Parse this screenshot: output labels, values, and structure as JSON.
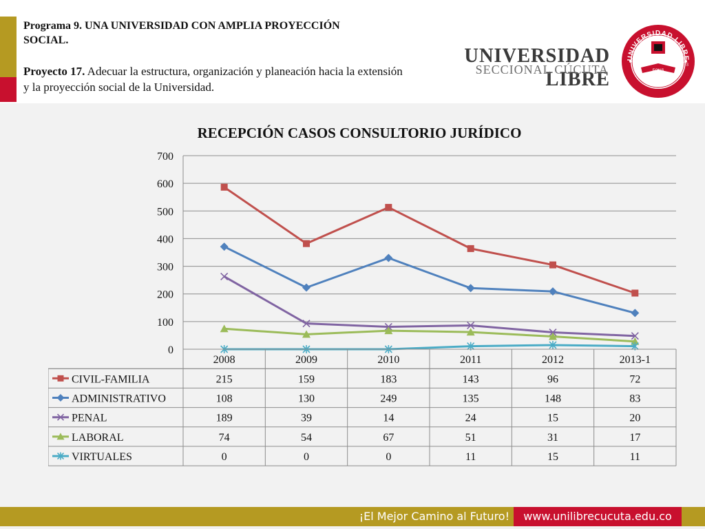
{
  "header": {
    "program_title": "Programa 9. UNA UNIVERSIDAD CON AMPLIA PROYECCIÓN SOCIAL.",
    "project_label": "Proyecto 17.",
    "project_text": " Adecuar la estructura, organización y planeación hacia la extensión y la proyección social de la Universidad.",
    "brand_name": "UNIVERSIDAD LIBRE",
    "brand_sub": "SECCIONAL CÚCUTA",
    "seal_top": "UNIVERSIDAD LIBRE",
    "seal_bottom": "COLOMBIA",
    "seal_left": "SCIENTIA",
    "seal_center": "FONS",
    "seal_right": "LIBERTATIS"
  },
  "chart_data": {
    "type": "line",
    "title": "RECEPCIÓN CASOS CONSULTORIO JURÍDICO",
    "categories": [
      "2008",
      "2009",
      "2010",
      "2011",
      "2012",
      "2013-1"
    ],
    "ylim": [
      0,
      700
    ],
    "yticks": [
      0,
      100,
      200,
      300,
      400,
      500,
      600,
      700
    ],
    "grid": true,
    "data_table": true,
    "series": [
      {
        "name": "CIVIL-FAMILIA",
        "color": "#c0504d",
        "marker": "square",
        "values": [
          215,
          159,
          183,
          143,
          96,
          72
        ]
      },
      {
        "name": "ADMINISTRATIVO",
        "color": "#4f81bd",
        "marker": "diamond",
        "values": [
          108,
          130,
          249,
          135,
          148,
          83
        ]
      },
      {
        "name": "PENAL",
        "color": "#8064a2",
        "marker": "x",
        "values": [
          189,
          39,
          14,
          24,
          15,
          20
        ]
      },
      {
        "name": "LABORAL",
        "color": "#9bbb59",
        "marker": "triangle",
        "values": [
          74,
          54,
          67,
          51,
          31,
          17
        ]
      },
      {
        "name": "VIRTUALES",
        "color": "#4bacc6",
        "marker": "star",
        "values": [
          0,
          0,
          0,
          11,
          15,
          11
        ]
      }
    ],
    "stacked": true
  },
  "footer": {
    "slogan": "¡El Mejor Camino al Futuro!",
    "url": "www.unilibrecucuta.edu.co",
    "gold": "#b59a22",
    "red": "#c8102e"
  }
}
